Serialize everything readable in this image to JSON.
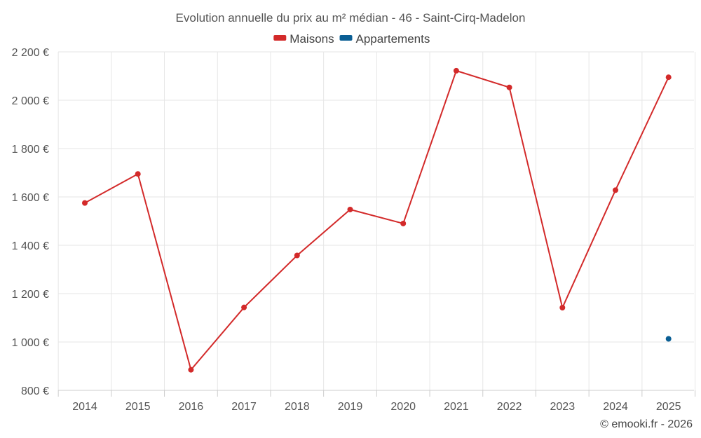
{
  "chart_data": {
    "type": "line",
    "title": "Evolution annuelle du prix au m² médian - 46 - Saint-Cirq-Madelon",
    "categories": [
      "2014",
      "2015",
      "2016",
      "2017",
      "2018",
      "2019",
      "2020",
      "2021",
      "2022",
      "2023",
      "2024",
      "2025"
    ],
    "series": [
      {
        "name": "Maisons",
        "color": "#d32a2a",
        "values": [
          1575,
          1695,
          885,
          1143,
          1358,
          1548,
          1490,
          2122,
          2053,
          1142,
          1628,
          2095
        ]
      },
      {
        "name": "Appartements",
        "color": "#0a5e94",
        "values": [
          null,
          null,
          null,
          null,
          null,
          null,
          null,
          null,
          null,
          null,
          null,
          1013
        ]
      }
    ],
    "ylim": [
      800,
      2200
    ],
    "yticks": [
      800,
      1000,
      1200,
      1400,
      1600,
      1800,
      2000,
      2200
    ],
    "ytick_labels": [
      "800 €",
      "1 000 €",
      "1 200 €",
      "1 400 €",
      "1 600 €",
      "1 800 €",
      "2 000 €",
      "2 200 €"
    ],
    "xlabel": "",
    "ylabel": "",
    "legend": "top-center",
    "grid": true
  },
  "credit": "© emooki.fr - 2026"
}
